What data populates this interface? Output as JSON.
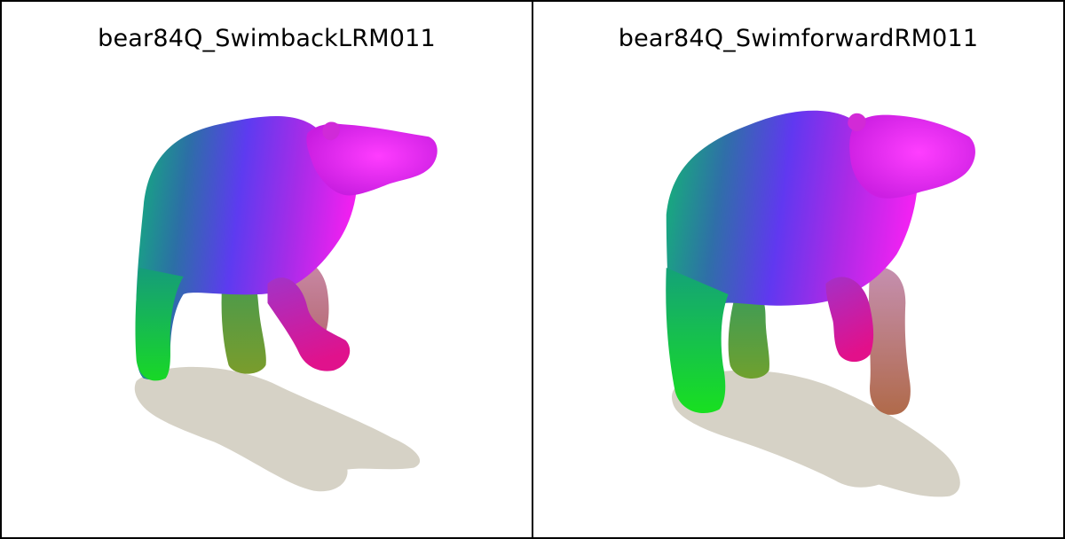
{
  "panels": [
    {
      "title": "bear84Q_SwimbackLRM011",
      "pose": "swim-back",
      "colors": {
        "hindquarter": "#14b86a",
        "back": "#5a3df0",
        "head": "#f21ef0",
        "front_leg": "#e0129a",
        "rear_foot": "#19e21c",
        "shadow": "#d6d2c6"
      }
    },
    {
      "title": "bear84Q_SwimforwardRM011",
      "pose": "swim-forward",
      "colors": {
        "hindquarter": "#14b86a",
        "back": "#5a3df0",
        "head": "#f21ef0",
        "front_leg": "#e0129a",
        "rear_foot": "#19e21c",
        "shadow": "#d6d2c6"
      }
    }
  ]
}
